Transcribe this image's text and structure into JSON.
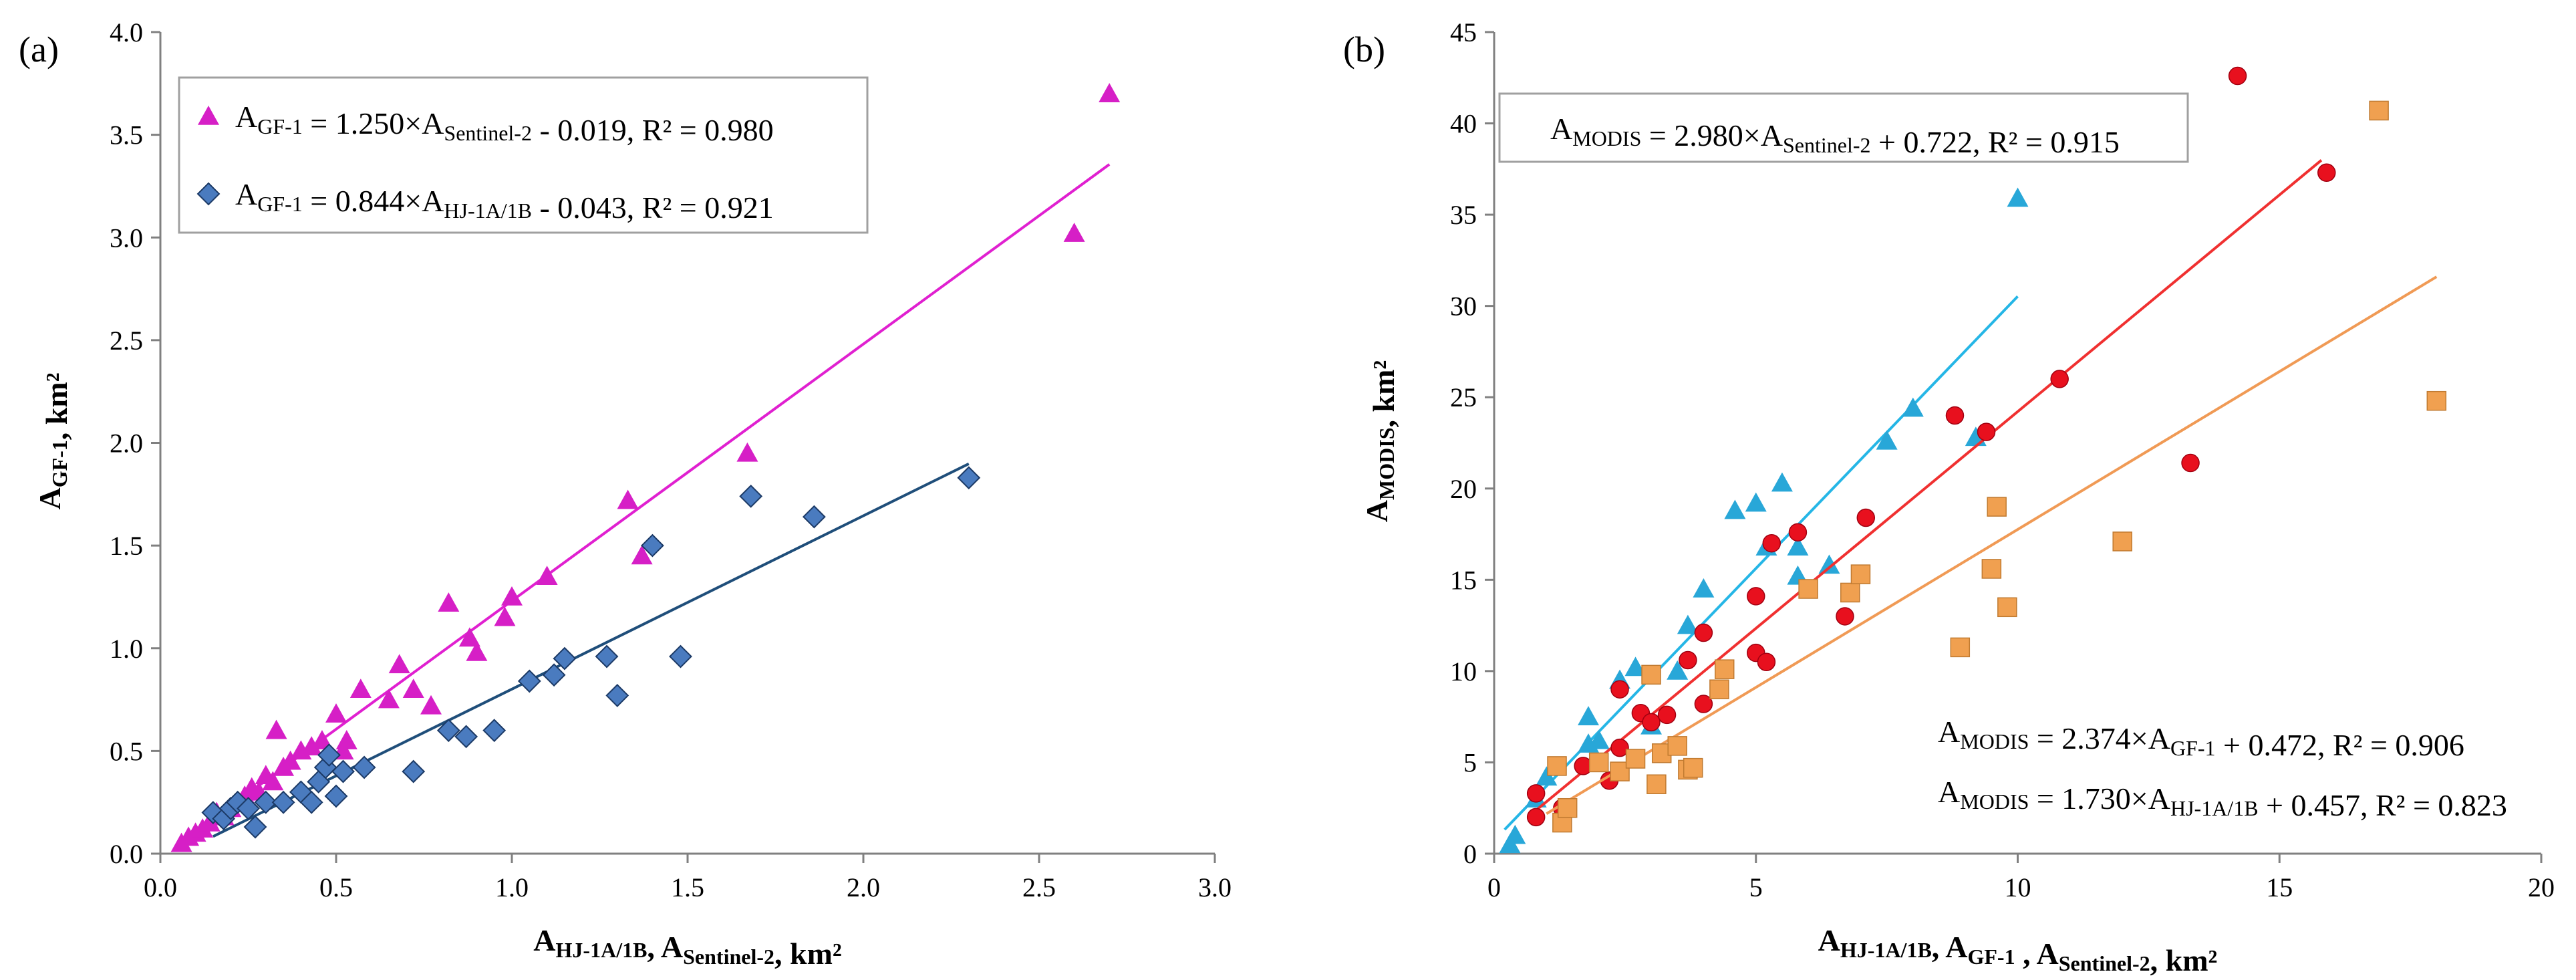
{
  "chart_data": [
    {
      "type": "scatter",
      "panel_label": "(a)",
      "xlabel": {
        "base": "A",
        "parts": [
          {
            "sub": "HJ-1A/1B"
          },
          {
            "text": ", A"
          },
          {
            "sub": "Sentinel-2"
          },
          {
            "text": ", km²"
          }
        ]
      },
      "ylabel": {
        "base": "A",
        "parts": [
          {
            "sub": "GF-1"
          },
          {
            "text": ", km²"
          }
        ]
      },
      "xlim": [
        0,
        3.0
      ],
      "ylim": [
        0,
        4.0
      ],
      "xticks": [
        "0.0",
        "0.5",
        "1.0",
        "1.5",
        "2.0",
        "2.5",
        "3.0"
      ],
      "yticks": [
        "0.0",
        "0.5",
        "1.0",
        "1.5",
        "2.0",
        "2.5",
        "3.0",
        "3.5",
        "4.0"
      ],
      "grid": false,
      "legend_position": "top-left",
      "series": [
        {
          "marker": "triangle",
          "color": "#d61fc6",
          "line_color": "#e020d0",
          "equation": {
            "lhs": "A",
            "lhs_sub": "GF-1",
            "mid": " = 1.250×A",
            "mid_sub": "Sentinel-2",
            "rhs": " - 0.019,  R² = 0.980"
          },
          "fit": {
            "slope": 1.25,
            "intercept": -0.019,
            "x_range": [
              0.05,
              2.7
            ]
          },
          "points": [
            [
              0.06,
              0.05
            ],
            [
              0.08,
              0.08
            ],
            [
              0.1,
              0.1
            ],
            [
              0.12,
              0.12
            ],
            [
              0.14,
              0.15
            ],
            [
              0.16,
              0.2
            ],
            [
              0.18,
              0.18
            ],
            [
              0.2,
              0.22
            ],
            [
              0.22,
              0.25
            ],
            [
              0.24,
              0.28
            ],
            [
              0.26,
              0.32
            ],
            [
              0.28,
              0.3
            ],
            [
              0.3,
              0.38
            ],
            [
              0.32,
              0.35
            ],
            [
              0.33,
              0.6
            ],
            [
              0.35,
              0.42
            ],
            [
              0.37,
              0.45
            ],
            [
              0.4,
              0.5
            ],
            [
              0.43,
              0.52
            ],
            [
              0.46,
              0.55
            ],
            [
              0.5,
              0.68
            ],
            [
              0.52,
              0.5
            ],
            [
              0.53,
              0.55
            ],
            [
              0.57,
              0.8
            ],
            [
              0.65,
              0.75
            ],
            [
              0.68,
              0.92
            ],
            [
              0.72,
              0.8
            ],
            [
              0.77,
              0.72
            ],
            [
              0.82,
              1.22
            ],
            [
              0.88,
              1.05
            ],
            [
              0.9,
              0.98
            ],
            [
              0.98,
              1.15
            ],
            [
              1.0,
              1.25
            ],
            [
              1.1,
              1.35
            ],
            [
              1.33,
              1.72
            ],
            [
              1.37,
              1.45
            ],
            [
              1.67,
              1.95
            ],
            [
              2.6,
              3.02
            ],
            [
              2.7,
              3.7
            ]
          ]
        },
        {
          "marker": "diamond",
          "color": "#4a7bbf",
          "line_color": "#1f4e7a",
          "equation": {
            "lhs": "A",
            "lhs_sub": "GF-1",
            "mid": " = 0.844×A",
            "mid_sub": "HJ-1A/1B",
            "rhs": " - 0.043,  R² = 0.921"
          },
          "fit": {
            "slope": 0.844,
            "intercept": -0.043,
            "x_range": [
              0.15,
              2.3
            ]
          },
          "points": [
            [
              0.15,
              0.2
            ],
            [
              0.18,
              0.17
            ],
            [
              0.2,
              0.22
            ],
            [
              0.22,
              0.25
            ],
            [
              0.25,
              0.22
            ],
            [
              0.27,
              0.13
            ],
            [
              0.3,
              0.25
            ],
            [
              0.35,
              0.25
            ],
            [
              0.4,
              0.3
            ],
            [
              0.43,
              0.25
            ],
            [
              0.45,
              0.35
            ],
            [
              0.47,
              0.42
            ],
            [
              0.48,
              0.48
            ],
            [
              0.5,
              0.28
            ],
            [
              0.52,
              0.4
            ],
            [
              0.58,
              0.42
            ],
            [
              0.72,
              0.4
            ],
            [
              0.82,
              0.6
            ],
            [
              0.87,
              0.57
            ],
            [
              0.95,
              0.6
            ],
            [
              1.05,
              0.84
            ],
            [
              1.12,
              0.87
            ],
            [
              1.15,
              0.95
            ],
            [
              1.27,
              0.96
            ],
            [
              1.3,
              0.77
            ],
            [
              1.4,
              1.5
            ],
            [
              1.48,
              0.96
            ],
            [
              1.68,
              1.74
            ],
            [
              1.86,
              1.64
            ],
            [
              2.3,
              1.83
            ]
          ]
        }
      ]
    },
    {
      "type": "scatter",
      "panel_label": "(b)",
      "xlabel": {
        "base": "A",
        "parts": [
          {
            "sub": "HJ-1A/1B"
          },
          {
            "text": ", A"
          },
          {
            "sub": "GF-1"
          },
          {
            "text": " , A"
          },
          {
            "sub": "Sentinel-2"
          },
          {
            "text": ", km²"
          }
        ]
      },
      "ylabel": {
        "base": "A",
        "parts": [
          {
            "sub": "MODIS"
          },
          {
            "text": ", km²"
          }
        ]
      },
      "xlim": [
        0,
        20
      ],
      "ylim": [
        0,
        45
      ],
      "xticks": [
        "0",
        "5",
        "10",
        "15",
        "20"
      ],
      "yticks": [
        "0",
        "5",
        "10",
        "15",
        "20",
        "25",
        "30",
        "35",
        "40",
        "45"
      ],
      "grid": false,
      "series": [
        {
          "marker": "triangle",
          "color": "#28a7d8",
          "line_color": "#25b6e6",
          "equation": {
            "lhs": "A",
            "lhs_sub": "MODIS",
            "mid": " = 2.980×A",
            "mid_sub": "Sentinel-2",
            "rhs": " + 0.722,  R² = 0.915"
          },
          "fit": {
            "slope": 2.98,
            "intercept": 0.722,
            "x_range": [
              0.2,
              10.0
            ]
          },
          "points": [
            [
              0.3,
              0.5
            ],
            [
              0.4,
              1.0
            ],
            [
              0.8,
              3.0
            ],
            [
              1.0,
              4.2
            ],
            [
              1.8,
              6.0
            ],
            [
              2.0,
              6.2
            ],
            [
              2.4,
              9.5
            ],
            [
              2.7,
              10.2
            ],
            [
              3.0,
              7.0
            ],
            [
              3.5,
              10.0
            ],
            [
              3.7,
              12.5
            ],
            [
              4.0,
              14.5
            ],
            [
              4.6,
              18.8
            ],
            [
              5.0,
              19.2
            ],
            [
              5.2,
              16.8
            ],
            [
              5.5,
              20.3
            ],
            [
              5.8,
              16.8
            ],
            [
              5.8,
              15.2
            ],
            [
              6.4,
              15.8
            ],
            [
              7.5,
              22.6
            ],
            [
              8.0,
              24.4
            ],
            [
              9.2,
              22.8
            ],
            [
              10.0,
              35.9
            ],
            [
              1.8,
              7.5
            ]
          ]
        },
        {
          "marker": "circle",
          "color": "#e8101e",
          "line_color": "#f03030",
          "equation": {
            "lhs": "A",
            "lhs_sub": "MODIS",
            "mid": " = 2.374×A",
            "mid_sub": "GF-1",
            "rhs": " + 0.472,  R² = 0.906"
          },
          "fit": {
            "slope": 2.374,
            "intercept": 0.472,
            "x_range": [
              0.7,
              15.8
            ]
          },
          "points": [
            [
              0.8,
              2.0
            ],
            [
              0.8,
              3.3
            ],
            [
              1.3,
              2.5
            ],
            [
              1.7,
              4.8
            ],
            [
              2.2,
              4.0
            ],
            [
              2.4,
              5.8
            ],
            [
              2.4,
              9.0
            ],
            [
              2.8,
              7.7
            ],
            [
              3.0,
              7.2
            ],
            [
              3.3,
              7.6
            ],
            [
              3.7,
              10.6
            ],
            [
              4.0,
              8.2
            ],
            [
              4.0,
              12.1
            ],
            [
              5.0,
              11.0
            ],
            [
              5.0,
              14.1
            ],
            [
              5.2,
              10.5
            ],
            [
              5.3,
              17.0
            ],
            [
              5.8,
              17.6
            ],
            [
              6.7,
              13.0
            ],
            [
              7.1,
              18.4
            ],
            [
              8.8,
              24.0
            ],
            [
              9.4,
              23.1
            ],
            [
              10.8,
              26.0
            ],
            [
              13.3,
              21.4
            ],
            [
              14.2,
              42.6
            ],
            [
              15.9,
              37.3
            ]
          ]
        },
        {
          "marker": "square",
          "color": "#f0a050",
          "line_color": "#f09a55",
          "equation": {
            "lhs": "A",
            "lhs_sub": "MODIS",
            "mid": " = 1.730×A",
            "mid_sub": "HJ-1A/1B",
            "rhs": " + 0.457,  R² = 0.823"
          },
          "fit": {
            "slope": 1.73,
            "intercept": 0.457,
            "x_range": [
              1.0,
              18.0
            ]
          },
          "points": [
            [
              1.2,
              4.8
            ],
            [
              1.3,
              1.7
            ],
            [
              1.4,
              2.5
            ],
            [
              2.0,
              5.0
            ],
            [
              2.4,
              4.5
            ],
            [
              2.7,
              5.2
            ],
            [
              3.0,
              9.8
            ],
            [
              3.1,
              3.8
            ],
            [
              3.2,
              5.5
            ],
            [
              3.5,
              5.9
            ],
            [
              3.7,
              4.6
            ],
            [
              3.8,
              4.7
            ],
            [
              4.3,
              9.0
            ],
            [
              4.4,
              10.1
            ],
            [
              6.0,
              14.5
            ],
            [
              6.8,
              14.3
            ],
            [
              7.0,
              15.3
            ],
            [
              8.9,
              11.3
            ],
            [
              9.5,
              15.6
            ],
            [
              9.6,
              19.0
            ],
            [
              9.8,
              13.5
            ],
            [
              12.0,
              17.1
            ],
            [
              16.9,
              40.7
            ],
            [
              18.0,
              24.8
            ]
          ]
        }
      ]
    }
  ]
}
